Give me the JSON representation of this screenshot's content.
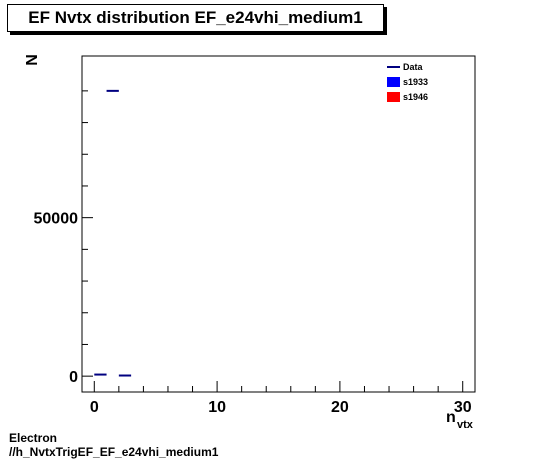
{
  "title": "EF Nvtx distribution EF_e24vhi_medium1",
  "caption": {
    "line1": "Electron",
    "line2": "//h_NvtxTrigEF_EF_e24vhi_medium1"
  },
  "colors": {
    "data": "#000080",
    "s1933": "#0000ff",
    "s1946": "#ff0000",
    "axis": "#000000"
  },
  "chart_data": {
    "type": "scatter",
    "title": "EF Nvtx distribution EF_e24vhi_medium1",
    "xlabel": "n",
    "xlabel_sub": "vtx",
    "ylabel": "N",
    "xlim": [
      -1,
      31
    ],
    "ylim": [
      -5000,
      101000
    ],
    "x_ticks": [
      0,
      10,
      20,
      30
    ],
    "x_tick_labels": [
      "0",
      "10",
      "20",
      "30"
    ],
    "y_ticks": [
      0,
      50000
    ],
    "y_tick_labels": [
      "0",
      "50000"
    ],
    "grid": false,
    "legend_position": "top-right",
    "legend": [
      "Data",
      "s1933",
      "s1946"
    ],
    "series": [
      {
        "name": "Data",
        "x": [
          0.5,
          1.5,
          2.5
        ],
        "values": [
          500,
          90000,
          200
        ]
      }
    ]
  }
}
